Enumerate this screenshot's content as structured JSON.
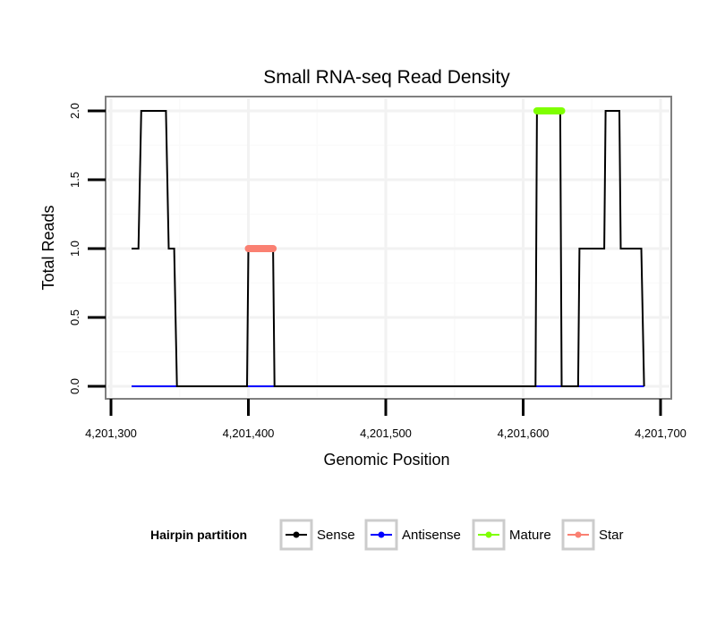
{
  "chart_data": {
    "type": "line",
    "title": "Small RNA-seq Read Density",
    "xlabel": "Genomic Position",
    "ylabel": "Total Reads",
    "xlim": [
      4201300,
      4201700
    ],
    "ylim": [
      0,
      2
    ],
    "xticks": [
      {
        "value": 4201300,
        "label": "4,201,300"
      },
      {
        "value": 4201400,
        "label": "4,201,400"
      },
      {
        "value": 4201500,
        "label": "4,201,500"
      },
      {
        "value": 4201600,
        "label": "4,201,600"
      },
      {
        "value": 4201700,
        "label": "4,201,700"
      }
    ],
    "yticks": [
      {
        "value": 0,
        "label": "0.0"
      },
      {
        "value": 0.5,
        "label": "0.5"
      },
      {
        "value": 1,
        "label": "1.0"
      },
      {
        "value": 1.5,
        "label": "1.5"
      },
      {
        "value": 2,
        "label": "2.0"
      }
    ],
    "grid": true,
    "legend": {
      "title": "Hairpin partition",
      "position": "bottom",
      "entries": [
        {
          "name": "Sense",
          "color": "#000000"
        },
        {
          "name": "Antisense",
          "color": "#0000ff"
        },
        {
          "name": "Mature",
          "color": "#7fff00"
        },
        {
          "name": "Star",
          "color": "#fa8072"
        }
      ]
    },
    "series": [
      {
        "name": "Sense",
        "color": "#000000",
        "x": [
          4201315,
          4201320,
          4201322,
          4201340,
          4201342,
          4201346,
          4201348,
          4201399,
          4201400,
          4201418,
          4201419,
          4201609,
          4201610,
          4201627,
          4201628,
          4201640,
          4201641,
          4201659,
          4201660,
          4201670,
          4201671,
          4201686,
          4201688
        ],
        "y": [
          1,
          1,
          2,
          2,
          1,
          1,
          0,
          0,
          1,
          1,
          0,
          0,
          2,
          2,
          0,
          0,
          1,
          1,
          2,
          2,
          1,
          1,
          0
        ]
      },
      {
        "name": "Antisense",
        "color": "#0000ff",
        "x": [
          4201315,
          4201688
        ],
        "y": [
          0,
          0
        ]
      },
      {
        "name": "Mature",
        "color": "#7fff00",
        "x": [
          4201610,
          4201628
        ],
        "y": [
          2,
          2
        ]
      },
      {
        "name": "Star",
        "color": "#fa8072",
        "x": [
          4201400,
          4201418
        ],
        "y": [
          1,
          1
        ]
      }
    ]
  }
}
